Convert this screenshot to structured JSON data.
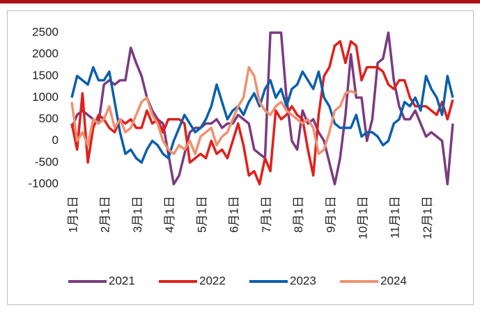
{
  "chart_data": {
    "type": "line",
    "categories": [
      "1月1日",
      null,
      null,
      null,
      null,
      null,
      "2月1日",
      null,
      null,
      null,
      null,
      null,
      "3月1日",
      null,
      null,
      null,
      null,
      null,
      "4月1日",
      null,
      null,
      null,
      null,
      null,
      "5月1日",
      null,
      null,
      null,
      null,
      null,
      "6月1日",
      null,
      null,
      null,
      null,
      null,
      "7月1日",
      null,
      null,
      null,
      null,
      null,
      "8月1日",
      null,
      null,
      null,
      null,
      null,
      "9月1日",
      null,
      null,
      null,
      null,
      null,
      "10月1日",
      null,
      null,
      null,
      null,
      null,
      "11月1日",
      null,
      null,
      null,
      null,
      null,
      "12月1日",
      null,
      null,
      null,
      null,
      null
    ],
    "series": [
      {
        "name": "2021",
        "color": "#7b3b80",
        "values": [
          300,
          600,
          700,
          600,
          500,
          400,
          1300,
          1400,
          1300,
          1400,
          1400,
          2150,
          1800,
          1500,
          1000,
          700,
          500,
          400,
          -300,
          -1000,
          -800,
          -300,
          200,
          300,
          300,
          400,
          400,
          500,
          300,
          400,
          400,
          600,
          500,
          400,
          -200,
          -300,
          -400,
          2500,
          2500,
          2500,
          1000,
          0,
          -200,
          700,
          400,
          500,
          200,
          0,
          -500,
          -1000,
          -400,
          600,
          2000,
          1000,
          1000,
          0,
          500,
          1800,
          1900,
          2500,
          1400,
          800,
          500,
          500,
          700,
          400,
          100,
          200,
          100,
          0,
          -1000,
          400
        ]
      },
      {
        "name": "2022",
        "color": "#e0201b",
        "values": [
          400,
          -200,
          1100,
          -500,
          300,
          600,
          500,
          300,
          200,
          500,
          400,
          500,
          300,
          300,
          700,
          400,
          500,
          200,
          500,
          500,
          500,
          400,
          -500,
          -400,
          -300,
          -400,
          0,
          -300,
          -200,
          -400,
          0,
          400,
          -100,
          -800,
          -700,
          -1000,
          -400,
          -700,
          700,
          500,
          600,
          800,
          600,
          500,
          -200,
          -800,
          600,
          1500,
          1700,
          2200,
          2300,
          1800,
          2300,
          2200,
          1400,
          1700,
          1700,
          1700,
          1600,
          1300,
          1200,
          1400,
          1400,
          1000,
          800,
          800,
          800,
          700,
          600,
          900,
          500,
          950
        ]
      },
      {
        "name": "2023",
        "color": "#0b5fad",
        "values": [
          1000,
          1500,
          1400,
          1300,
          1700,
          1400,
          1400,
          1600,
          900,
          200,
          -300,
          -200,
          -400,
          -500,
          -200,
          0,
          -100,
          -300,
          -400,
          0,
          300,
          600,
          400,
          200,
          300,
          500,
          800,
          1300,
          900,
          500,
          700,
          800,
          600,
          900,
          1100,
          800,
          1200,
          1400,
          1000,
          1200,
          800,
          1200,
          1300,
          1600,
          1400,
          1200,
          1600,
          1000,
          800,
          400,
          300,
          300,
          300,
          600,
          100,
          200,
          200,
          100,
          -100,
          0,
          400,
          500,
          900,
          800,
          1000,
          700,
          1500,
          1200,
          1000,
          600,
          1500,
          1000
        ]
      },
      {
        "name": "2024",
        "color": "#f0906f",
        "values": [
          900,
          0,
          200,
          -100,
          500,
          400,
          500,
          800,
          300,
          500,
          200,
          300,
          600,
          900,
          1000,
          600,
          400,
          0,
          -200,
          -300,
          -100,
          -200,
          0,
          -300,
          100,
          200,
          300,
          -100,
          100,
          200,
          500,
          800,
          1000,
          1700,
          1500,
          900,
          700,
          600,
          800,
          900,
          700,
          600,
          500,
          400,
          500,
          300,
          -300,
          -200,
          200,
          700,
          800,
          1100,
          1150,
          1100,
          null,
          null,
          null,
          null,
          null,
          null,
          null,
          null,
          null,
          null,
          null,
          null,
          null,
          null,
          null,
          null,
          null,
          null
        ]
      }
    ],
    "ylim": [
      -1000,
      2500
    ],
    "yticks": [
      -1000,
      -500,
      0,
      500,
      1000,
      1500,
      2000,
      2500
    ],
    "legend": "bottom"
  }
}
